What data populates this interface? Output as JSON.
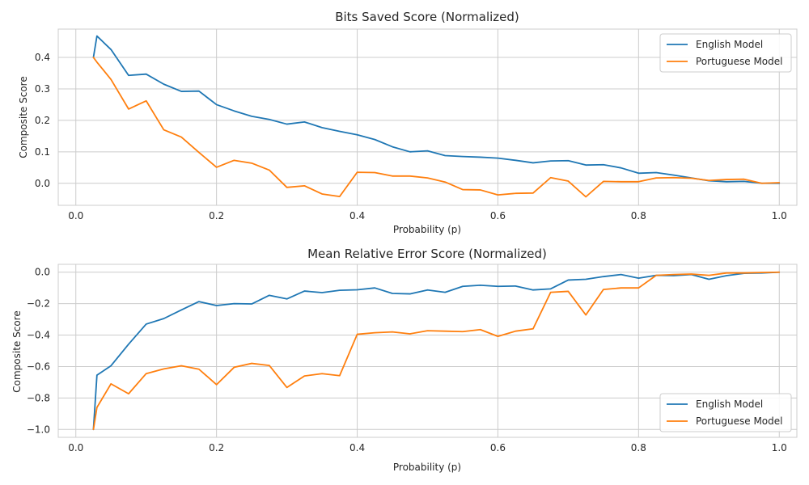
{
  "chart_data": [
    {
      "type": "line",
      "title": "Bits Saved Score (Normalized)",
      "xlabel": "Probability (p)",
      "ylabel": "Composite Score",
      "xlim": [
        -0.025,
        1.025
      ],
      "ylim": [
        -0.07,
        0.49
      ],
      "xticks": [
        0.0,
        0.2,
        0.4,
        0.6,
        0.8,
        1.0
      ],
      "xtick_labels": [
        "0.0",
        "0.2",
        "0.4",
        "0.6",
        "0.8",
        "1.0"
      ],
      "yticks": [
        0.0,
        0.1,
        0.2,
        0.3,
        0.4
      ],
      "ytick_labels": [
        "0.0",
        "0.1",
        "0.2",
        "0.3",
        "0.4"
      ],
      "grid": true,
      "legend_position": "top-right",
      "x": [
        0.025,
        0.03,
        0.05,
        0.075,
        0.1,
        0.125,
        0.15,
        0.175,
        0.2,
        0.225,
        0.25,
        0.275,
        0.3,
        0.325,
        0.35,
        0.375,
        0.4,
        0.425,
        0.45,
        0.475,
        0.5,
        0.525,
        0.55,
        0.575,
        0.6,
        0.625,
        0.65,
        0.675,
        0.7,
        0.725,
        0.75,
        0.775,
        0.8,
        0.825,
        0.85,
        0.875,
        0.9,
        0.925,
        0.95,
        0.975,
        1.0
      ],
      "series": [
        {
          "name": "English Model",
          "color": "#1f77b4",
          "values": [
            0.4,
            0.468,
            0.425,
            0.343,
            0.347,
            0.315,
            0.292,
            0.293,
            0.25,
            0.23,
            0.213,
            0.203,
            0.188,
            0.195,
            0.177,
            0.165,
            0.154,
            0.139,
            0.116,
            0.1,
            0.103,
            0.088,
            0.085,
            0.083,
            0.08,
            0.073,
            0.065,
            0.071,
            0.072,
            0.058,
            0.059,
            0.049,
            0.032,
            0.034,
            0.026,
            0.017,
            0.008,
            0.005,
            0.006,
            0.0,
            0.0
          ]
        },
        {
          "name": "Portuguese Model",
          "color": "#ff7f0e",
          "values": [
            0.4,
            0.385,
            0.33,
            0.236,
            0.262,
            0.17,
            0.147,
            0.098,
            0.051,
            0.073,
            0.064,
            0.042,
            -0.013,
            -0.008,
            -0.034,
            -0.042,
            0.035,
            0.034,
            0.023,
            0.023,
            0.017,
            0.004,
            -0.02,
            -0.021,
            -0.037,
            -0.032,
            -0.031,
            0.018,
            0.007,
            -0.043,
            0.006,
            0.005,
            0.005,
            0.017,
            0.018,
            0.016,
            0.009,
            0.012,
            0.013,
            0.0,
            0.002
          ]
        }
      ]
    },
    {
      "type": "line",
      "title": "Mean Relative Error Score (Normalized)",
      "xlabel": "Probability (p)",
      "ylabel": "Composite Score",
      "xlim": [
        -0.025,
        1.025
      ],
      "ylim": [
        -1.05,
        0.05
      ],
      "xticks": [
        0.0,
        0.2,
        0.4,
        0.6,
        0.8,
        1.0
      ],
      "xtick_labels": [
        "0.0",
        "0.2",
        "0.4",
        "0.6",
        "0.8",
        "1.0"
      ],
      "yticks": [
        -1.0,
        -0.8,
        -0.6,
        -0.4,
        -0.2,
        0.0
      ],
      "ytick_labels": [
        "−1.0",
        "−0.8",
        "−0.6",
        "−0.4",
        "−0.2",
        "0.0"
      ],
      "grid": true,
      "legend_position": "bottom-right",
      "x": [
        0.025,
        0.03,
        0.05,
        0.075,
        0.1,
        0.125,
        0.15,
        0.175,
        0.2,
        0.225,
        0.25,
        0.275,
        0.3,
        0.325,
        0.35,
        0.375,
        0.4,
        0.425,
        0.45,
        0.475,
        0.5,
        0.525,
        0.55,
        0.575,
        0.6,
        0.625,
        0.65,
        0.675,
        0.7,
        0.725,
        0.75,
        0.775,
        0.8,
        0.825,
        0.85,
        0.875,
        0.9,
        0.925,
        0.95,
        0.975,
        1.0
      ],
      "series": [
        {
          "name": "English Model",
          "color": "#1f77b4",
          "values": [
            -1.0,
            -0.655,
            -0.595,
            -0.458,
            -0.33,
            -0.295,
            -0.24,
            -0.187,
            -0.212,
            -0.2,
            -0.202,
            -0.147,
            -0.17,
            -0.12,
            -0.13,
            -0.115,
            -0.112,
            -0.1,
            -0.135,
            -0.138,
            -0.113,
            -0.128,
            -0.09,
            -0.083,
            -0.09,
            -0.088,
            -0.113,
            -0.106,
            -0.05,
            -0.045,
            -0.028,
            -0.015,
            -0.038,
            -0.02,
            -0.022,
            -0.015,
            -0.045,
            -0.022,
            -0.007,
            -0.005,
            0.0
          ]
        },
        {
          "name": "Portuguese Model",
          "color": "#ff7f0e",
          "values": [
            -1.0,
            -0.86,
            -0.71,
            -0.773,
            -0.645,
            -0.615,
            -0.595,
            -0.617,
            -0.715,
            -0.605,
            -0.58,
            -0.593,
            -0.733,
            -0.66,
            -0.645,
            -0.658,
            -0.395,
            -0.385,
            -0.38,
            -0.392,
            -0.372,
            -0.375,
            -0.378,
            -0.365,
            -0.408,
            -0.375,
            -0.36,
            -0.128,
            -0.122,
            -0.272,
            -0.11,
            -0.1,
            -0.1,
            -0.02,
            -0.015,
            -0.012,
            -0.02,
            -0.005,
            -0.005,
            -0.002,
            0.0
          ]
        }
      ]
    }
  ]
}
